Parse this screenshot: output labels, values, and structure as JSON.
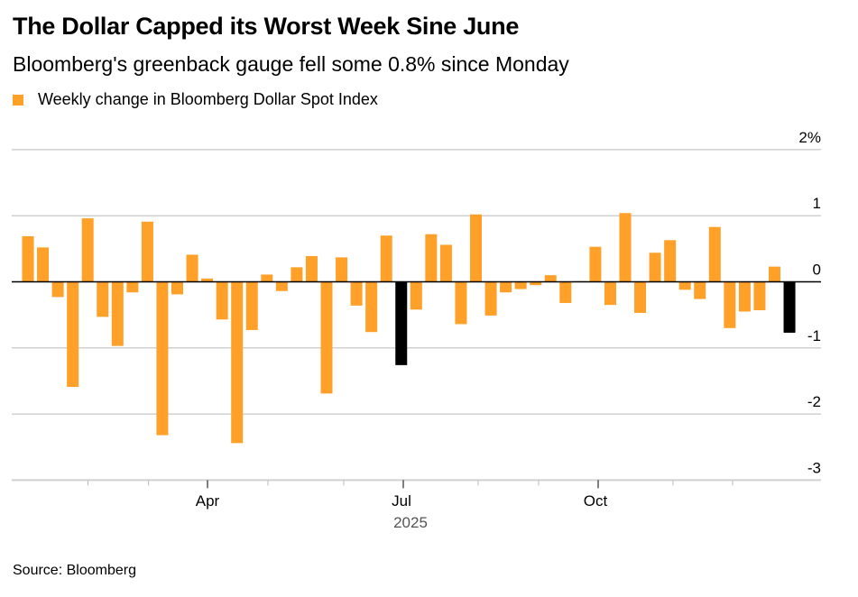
{
  "chart_data": {
    "type": "bar",
    "title": "The Dollar Capped its Worst Week Sine June",
    "subtitle": "Bloomberg's greenback gauge fell some 0.8% since Monday",
    "legend": [
      {
        "name": "Weekly change in Bloomberg Dollar Spot Index",
        "color": "#ffa028"
      }
    ],
    "legend_position": "top-left",
    "series": [
      {
        "name": "Weekly change in Bloomberg Dollar Spot Index",
        "values": [
          0.69,
          0.52,
          -0.23,
          -1.59,
          0.96,
          -0.53,
          -0.97,
          -0.16,
          0.91,
          -2.32,
          -0.19,
          0.41,
          0.05,
          -0.57,
          -2.44,
          -0.73,
          0.11,
          -0.14,
          0.22,
          0.39,
          -1.69,
          0.37,
          -0.36,
          -0.76,
          0.7,
          -1.26,
          -0.42,
          0.72,
          0.56,
          -0.64,
          1.02,
          -0.51,
          -0.16,
          -0.11,
          -0.05,
          0.1,
          -0.32,
          0.01,
          0.53,
          -0.35,
          1.04,
          -0.47,
          0.44,
          0.63,
          -0.12,
          -0.26,
          0.83,
          -0.7,
          -0.45,
          -0.43,
          0.23,
          -0.77
        ],
        "highlighted_indices": [
          25,
          51
        ]
      }
    ],
    "colors": {
      "bar": "#ffa028",
      "highlight": "#000000"
    },
    "ylim": [
      -3,
      2
    ],
    "y_ticks": [
      "2%",
      "1",
      "0",
      "-1",
      "-2",
      "-3"
    ],
    "y_tick_values": [
      2,
      1,
      0,
      -1,
      -2,
      -3
    ],
    "y_axis_position": "right",
    "x_tick_labels": [
      "Apr",
      "Jul",
      "Oct"
    ],
    "x_year_label": "2025",
    "grid": true,
    "xlabel": "",
    "ylabel": ""
  },
  "source": "Source: Bloomberg"
}
